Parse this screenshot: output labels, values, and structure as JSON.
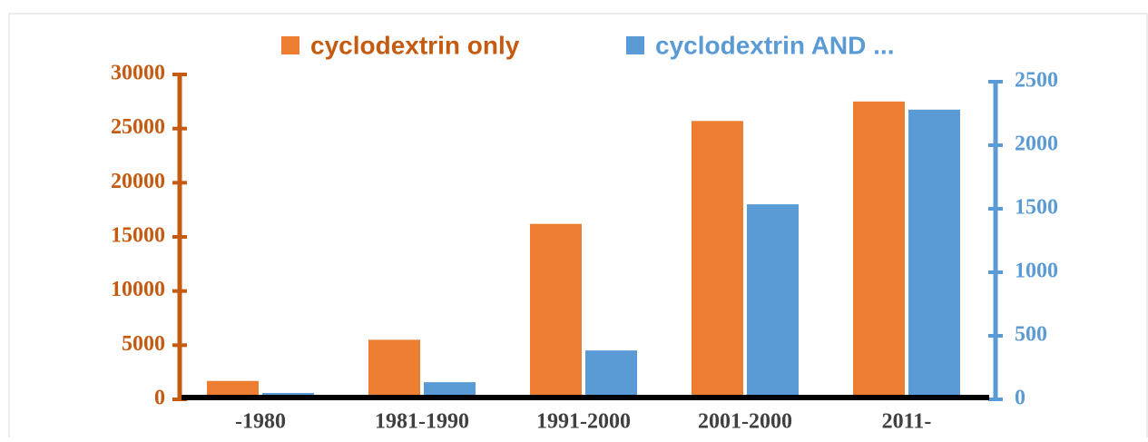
{
  "chart_data": {
    "type": "bar",
    "categories": [
      "-1980",
      "1981-1990",
      "1991-2000",
      "2001-2000",
      "2011-"
    ],
    "series": [
      {
        "name": "cyclodextrin only",
        "color": "#ed7d31",
        "values": [
          1700,
          5500,
          16200,
          25700,
          27500
        ]
      },
      {
        "name": "cyclodextrin AND ...",
        "color": "#5b9bd5",
        "axis": "y2",
        "values": [
          50,
          135,
          385,
          1535,
          2280
        ]
      }
    ],
    "ylim": [
      0,
      30000
    ],
    "yticks": [
      0,
      5000,
      10000,
      15000,
      20000,
      25000,
      30000
    ],
    "y2lim": [
      0,
      2500
    ],
    "y2ticks": [
      0,
      500,
      1000,
      1500,
      2000,
      2500
    ],
    "yaxis_color": "#c55a11",
    "y2axis_color": "#5b9bd5",
    "legend": "top",
    "grid": false
  }
}
